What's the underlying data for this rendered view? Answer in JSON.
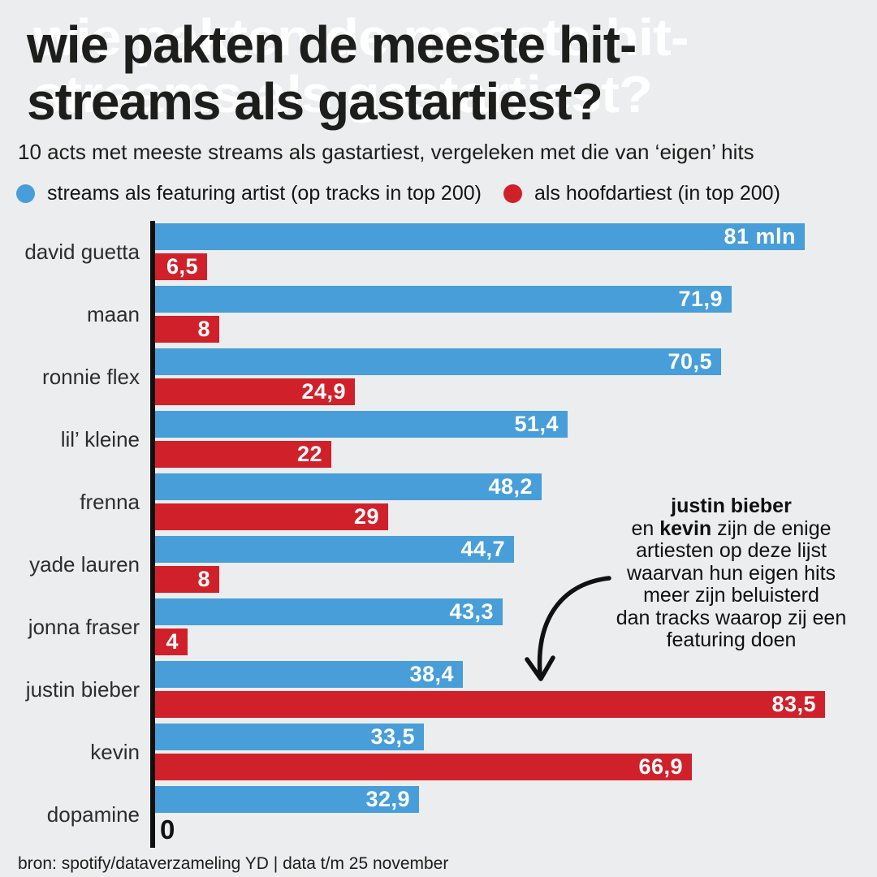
{
  "header": {
    "title_line1": "wie pakten de meeste hit-",
    "title_line2": "streams als gastartiest?",
    "subtitle": "10 acts met meeste streams als gastartiest, vergeleken met die van ‘eigen’ hits"
  },
  "legend": {
    "featuring_label": "streams als featuring artist (op tracks in top 200)",
    "main_label": "als hoofdartiest (in top 200)"
  },
  "colors": {
    "featuring_blue": "#479ED9",
    "main_red": "#D0212B",
    "background": "#EBEDEE",
    "axis_black": "#0F0F0F"
  },
  "chart_data": {
    "type": "bar",
    "orientation": "horizontal",
    "unit": "mln streams",
    "xlim": [
      0,
      90
    ],
    "x_baseline_label": "0",
    "grid": false,
    "legend_position": "top",
    "categories": [
      "david guetta",
      "maan",
      "ronnie flex",
      "lil’ kleine",
      "frenna",
      "yade lauren",
      "jonna fraser",
      "justin bieber",
      "kevin",
      "dopamine"
    ],
    "series": [
      {
        "name": "streams als featuring artist (op tracks in top 200)",
        "color": "#479ED9",
        "values": [
          81,
          71.9,
          70.5,
          51.4,
          48.2,
          44.7,
          43.3,
          38.4,
          33.5,
          32.9
        ],
        "labels": [
          "81 mln",
          "71,9",
          "70,5",
          "51,4",
          "48,2",
          "44,7",
          "43,3",
          "38,4",
          "33,5",
          "32,9"
        ]
      },
      {
        "name": "als hoofdartiest (in top 200)",
        "color": "#D0212B",
        "values": [
          6.5,
          8,
          24.9,
          22,
          29,
          8,
          4,
          83.5,
          66.9,
          null
        ],
        "labels": [
          "6,5",
          "8",
          "24,9",
          "22",
          "29",
          "8",
          "4",
          "83,5",
          "66,9",
          null
        ]
      }
    ]
  },
  "annotation": {
    "line1_bold": "justin bieber",
    "line2_pre": "en ",
    "line2_bold": "kevin",
    "line2_post": " zijn de enige",
    "rest": [
      "artiesten op deze lijst",
      "waarvan hun eigen hits",
      "meer zijn beluisterd",
      "dan tracks waarop zij een",
      "featuring doen"
    ]
  },
  "footer": {
    "source": "bron: spotify/dataverzameling YD | data t/m 25 november"
  }
}
